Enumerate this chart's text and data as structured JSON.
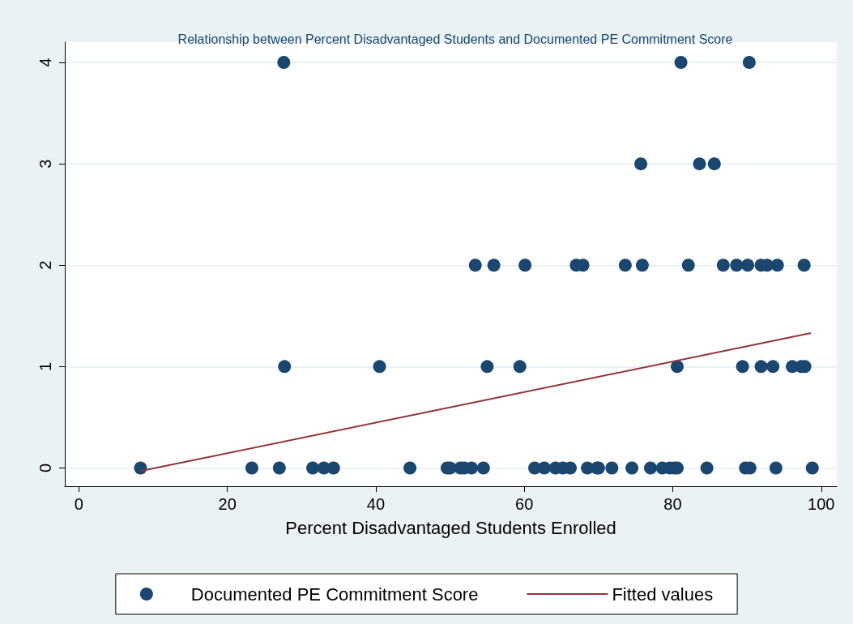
{
  "chart_data": {
    "type": "scatter",
    "title": "Relationship between Percent Disadvantaged Students and Documented PE Commitment Score",
    "xlabel": "Percent Disadvantaged Students Enrolled",
    "xlim": [
      -1.9,
      102.1
    ],
    "xticks": [
      0,
      20,
      40,
      60,
      80,
      100
    ],
    "ylim": [
      -0.18,
      4.2
    ],
    "yticks": [
      0,
      1,
      2,
      3,
      4
    ],
    "grid": "y",
    "legend": "bottom",
    "series": [
      {
        "name": "Documented PE Commitment Score",
        "color": "#1a476f",
        "marker": "circle",
        "x": [
          8.3,
          23.3,
          27.0,
          31.5,
          33.0,
          34.3,
          44.6,
          49.6,
          50.0,
          51.4,
          51.9,
          52.9,
          54.5,
          61.4,
          62.7,
          64.2,
          65.2,
          66.2,
          68.5,
          69.8,
          70.0,
          71.8,
          74.5,
          77.0,
          78.6,
          79.6,
          80.2,
          80.6,
          84.6,
          89.8,
          90.4,
          93.9,
          98.8,
          27.7,
          40.5,
          55.0,
          59.4,
          80.6,
          89.4,
          91.9,
          93.5,
          96.1,
          97.3,
          97.8,
          53.4,
          55.9,
          60.1,
          67.0,
          67.9,
          73.6,
          75.9,
          82.1,
          86.8,
          88.6,
          90.1,
          91.9,
          92.7,
          94.1,
          97.7,
          75.7,
          83.6,
          85.6,
          27.6,
          81.1,
          90.3
        ],
        "values": [
          0,
          0,
          0,
          0,
          0,
          0,
          0,
          0,
          0,
          0,
          0,
          0,
          0,
          0,
          0,
          0,
          0,
          0,
          0,
          0,
          0,
          0,
          0,
          0,
          0,
          0,
          0,
          0,
          0,
          0,
          0,
          0,
          0,
          1,
          1,
          1,
          1,
          1,
          1,
          1,
          1,
          1,
          1,
          1,
          2,
          2,
          2,
          2,
          2,
          2,
          2,
          2,
          2,
          2,
          2,
          2,
          2,
          2,
          2,
          3,
          3,
          3,
          4,
          4,
          4
        ]
      },
      {
        "name": "Fitted values",
        "color": "#90353b",
        "type": "line",
        "x": [
          8.3,
          98.6
        ],
        "values": [
          -0.03,
          1.33
        ]
      }
    ]
  }
}
